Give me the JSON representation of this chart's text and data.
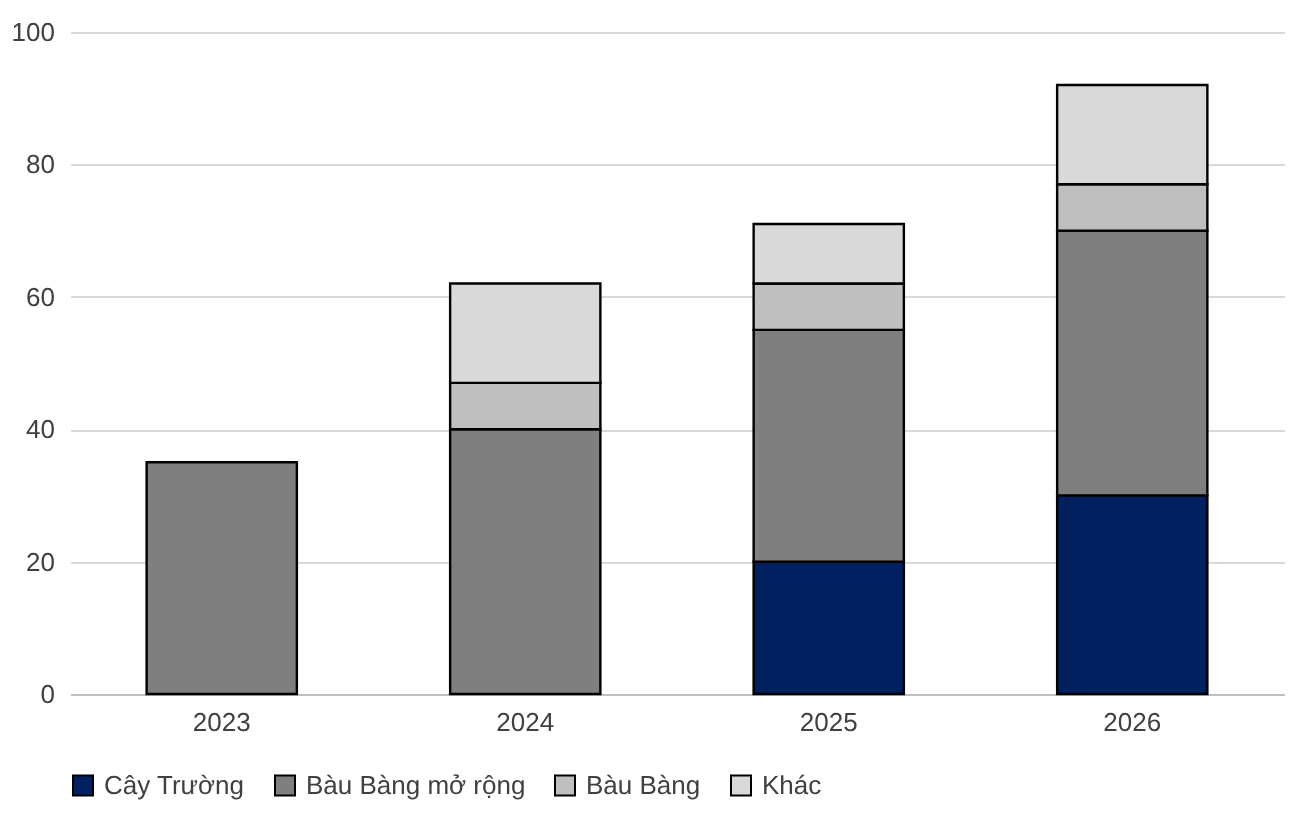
{
  "chart_data": {
    "type": "bar",
    "stacked": true,
    "categories": [
      "2023",
      "2024",
      "2025",
      "2026"
    ],
    "series": [
      {
        "name": "Cây Trường",
        "color": "#002060",
        "values": [
          null,
          null,
          20,
          30
        ]
      },
      {
        "name": "Bàu Bàng mở rộng",
        "color": "#7f7f7f",
        "values": [
          35,
          40,
          35,
          40
        ]
      },
      {
        "name": "Bàu Bàng",
        "color": "#bfbfbf",
        "values": [
          null,
          7,
          7,
          7
        ]
      },
      {
        "name": "Khác",
        "color": "#d9d9d9",
        "values": [
          null,
          15,
          9,
          15
        ]
      }
    ],
    "ylim": [
      0,
      100
    ],
    "yticks": [
      0,
      20,
      40,
      60,
      80,
      100
    ],
    "grid": "y",
    "legend": "bottom"
  }
}
